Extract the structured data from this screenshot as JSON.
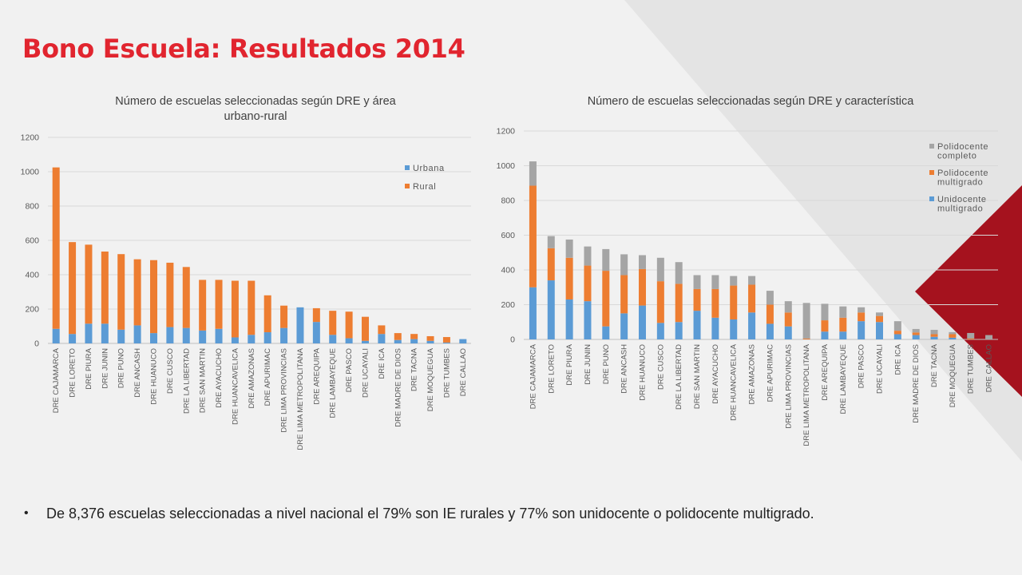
{
  "page": {
    "title": "Bono Escuela: Resultados 2014",
    "bullet_text": "De 8,376 escuelas seleccionadas a nivel nacional el 79% son IE rurales y 77% son unidocente o polidocente multigrado."
  },
  "colors": {
    "title": "#e1252f",
    "urbana": "#5b9bd5",
    "rural": "#ed7d31",
    "polidocente_completo": "#a5a5a5",
    "axis_text": "#595959",
    "gridline": "#d9d9d9",
    "accent_dark_red": "#a5121e",
    "background_triangle": "#e4e4e4"
  },
  "chart_data": [
    {
      "type": "bar",
      "stacked": true,
      "title": "Número de escuelas seleccionadas según DRE y área urbano-rural",
      "title_lines": [
        "Número de escuelas seleccionadas según DRE y área",
        "urbano-rural"
      ],
      "categories": [
        "DRE CAJAMARCA",
        "DRE LORETO",
        "DRE PIURA",
        "DRE JUNIN",
        "DRE PUNO",
        "DRE ANCASH",
        "DRE HUANUCO",
        "DRE CUSCO",
        "DRE LA LIBERTAD",
        "DRE SAN MARTIN",
        "DRE AYACUCHO",
        "DRE HUANCAVELICA",
        "DRE AMAZONAS",
        "DRE APURIMAC",
        "DRE LIMA PROVINCIAS",
        "DRE LIMA METROPOLITANA",
        "DRE AREQUIPA",
        "DRE LAMBAYEQUE",
        "DRE PASCO",
        "DRE UCAYALI",
        "DRE ICA",
        "DRE MADRE DE DIOS",
        "DRE TACNA",
        "DRE MOQUEGUA",
        "DRE TUMBES",
        "DRE CALLAO"
      ],
      "series": [
        {
          "name": "Urbana",
          "values": [
            85,
            55,
            115,
            115,
            80,
            105,
            60,
            95,
            90,
            75,
            85,
            35,
            50,
            65,
            90,
            210,
            125,
            50,
            30,
            15,
            55,
            20,
            25,
            15,
            5,
            25
          ]
        },
        {
          "name": "Rural",
          "values": [
            940,
            535,
            460,
            420,
            440,
            385,
            425,
            375,
            355,
            295,
            285,
            330,
            315,
            215,
            130,
            0,
            80,
            140,
            155,
            140,
            50,
            40,
            30,
            27,
            32,
            0
          ]
        }
      ],
      "ylim": [
        0,
        1200
      ],
      "yticks": [
        0,
        200,
        400,
        600,
        800,
        1000,
        1200
      ],
      "grid": true,
      "legend": "top-right"
    },
    {
      "type": "bar",
      "stacked": true,
      "title": "Número de escuelas seleccionadas según DRE y característica",
      "categories": [
        "DRE CAJAMARCA",
        "DRE LORETO",
        "DRE PIURA",
        "DRE JUNIN",
        "DRE PUNO",
        "DRE ANCASH",
        "DRE HUANUCO",
        "DRE CUSCO",
        "DRE LA LIBERTAD",
        "DRE SAN MARTIN",
        "DRE AYACUCHO",
        "DRE HUANCAVELICA",
        "DRE AMAZONAS",
        "DRE APURIMAC",
        "DRE LIMA PROVINCIAS",
        "DRE LIMA METROPOLITANA",
        "DRE AREQUIPA",
        "DRE LAMBAYEQUE",
        "DRE PASCO",
        "DRE UCAYALI",
        "DRE ICA",
        "DRE MADRE DE DIOS",
        "DRE TACNA",
        "DRE MOQUEGUA",
        "DRE TUMBES",
        "DRE CALLAO"
      ],
      "series": [
        {
          "name": "Unidocente multigrado",
          "values": [
            300,
            340,
            230,
            220,
            75,
            150,
            195,
            95,
            100,
            165,
            125,
            115,
            155,
            90,
            75,
            0,
            45,
            45,
            105,
            100,
            30,
            25,
            15,
            10,
            0,
            0
          ]
        },
        {
          "name": "Polidocente multigrado",
          "values": [
            585,
            185,
            240,
            205,
            320,
            220,
            210,
            240,
            220,
            125,
            165,
            195,
            160,
            110,
            80,
            5,
            65,
            80,
            50,
            35,
            20,
            15,
            15,
            20,
            5,
            0
          ]
        },
        {
          "name": "Polidocente completo",
          "values": [
            140,
            70,
            105,
            110,
            125,
            120,
            80,
            135,
            125,
            80,
            80,
            55,
            50,
            80,
            65,
            205,
            95,
            65,
            30,
            20,
            55,
            20,
            25,
            12,
            32,
            25
          ]
        }
      ],
      "legend_lines": [
        [
          "Polidocente",
          "completo"
        ],
        [
          "Polidocente",
          "multigrado"
        ],
        [
          "Unidocente",
          "multigrado"
        ]
      ],
      "ylim": [
        0,
        1200
      ],
      "yticks": [
        0,
        200,
        400,
        600,
        800,
        1000,
        1200
      ],
      "grid": true,
      "legend": "top-right"
    }
  ]
}
